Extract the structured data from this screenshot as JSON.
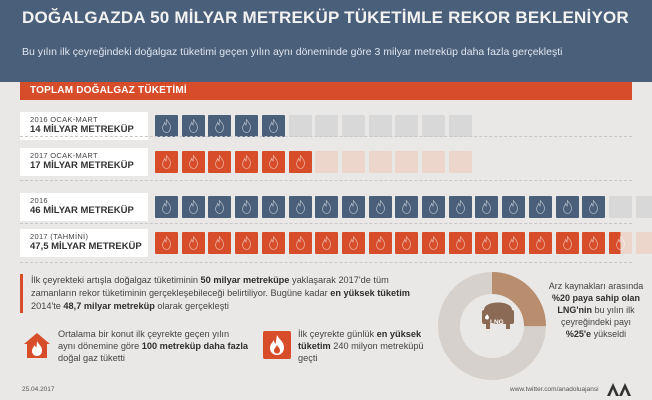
{
  "header": {
    "title": "DOĞALGAZDA 50 MİLYAR METREKÜP TÜKETİMLE REKOR BEKLENİYOR",
    "subtitle": "Bu yılın ilk çeyreğindeki doğalgaz tüketimi geçen yılın aynı döneminde göre 3 milyar metreküp daha fazla gerçekleşti"
  },
  "section_title": "TOPLAM DOĞALGAZ TÜKETİMİ",
  "rows": [
    {
      "period": "2016 OCAK-MART",
      "amount": "14 MİLYAR METREKÜP",
      "color": "#4a5f7a",
      "filled_cells": 5,
      "total_cells": 12
    },
    {
      "period": "2017 OCAK-MART",
      "amount": "17 MİLYAR METREKÜP",
      "color": "#d74d2a",
      "filled_cells": 6,
      "total_cells": 12
    },
    {
      "period": "2016",
      "amount": "46 MİLYAR METREKÜP",
      "color": "#4a5f7a",
      "filled_cells": 17,
      "total_cells": 19
    },
    {
      "period": "2017 (TAHMİNİ)",
      "amount": "47,5 MİLYAR METREKÜP",
      "color": "#d74d2a",
      "filled_cells": 17.5,
      "total_cells": 19
    }
  ],
  "bottom_text": {
    "p1": "İlk çeyrekteki artışla doğalgaz tüketiminin ",
    "b1": "50 milyar metreküpe",
    "p2": " yaklaşarak 2017'de tüm zamanların rekor tüketiminin gerçekleşebileceği belirtiliyor. Bugüne kadar ",
    "b2": "en yüksek tüketim",
    "p3": " 2014'te ",
    "b3": "48,7 milyar metreküp",
    "p4": " olarak gerçekleşti"
  },
  "stat1": {
    "p1": "Ortalama bir konut ilk çeyrekte geçen yılın aynı dönemine göre ",
    "b1": "100 metreküp daha fazla",
    "p2": " doğal gaz tüketti"
  },
  "stat2": {
    "p1": "İlk çeyrekte günlük ",
    "b1": "en yüksek tüketim",
    "p2": " 240 milyon metreküpü geçti"
  },
  "donut": {
    "lng_share_percent": 25,
    "tank_label": "LNG",
    "text_p1": "Arz kaynakları arasında ",
    "text_b1": "%20 paya sahip olan LNG'nin",
    "text_p2": " bu yılın ilk çeyreğindeki payı ",
    "text_b2": "%25'e",
    "text_p3": " yükseldi"
  },
  "footer": {
    "date": "25.04.2017",
    "handle": "www.twitter.com/anadoluajansi"
  },
  "colors": {
    "blue": "#4a5f7a",
    "orange": "#d74d2a",
    "donut_main": "#b98e6e",
    "donut_rest": "#d6d1cc"
  }
}
